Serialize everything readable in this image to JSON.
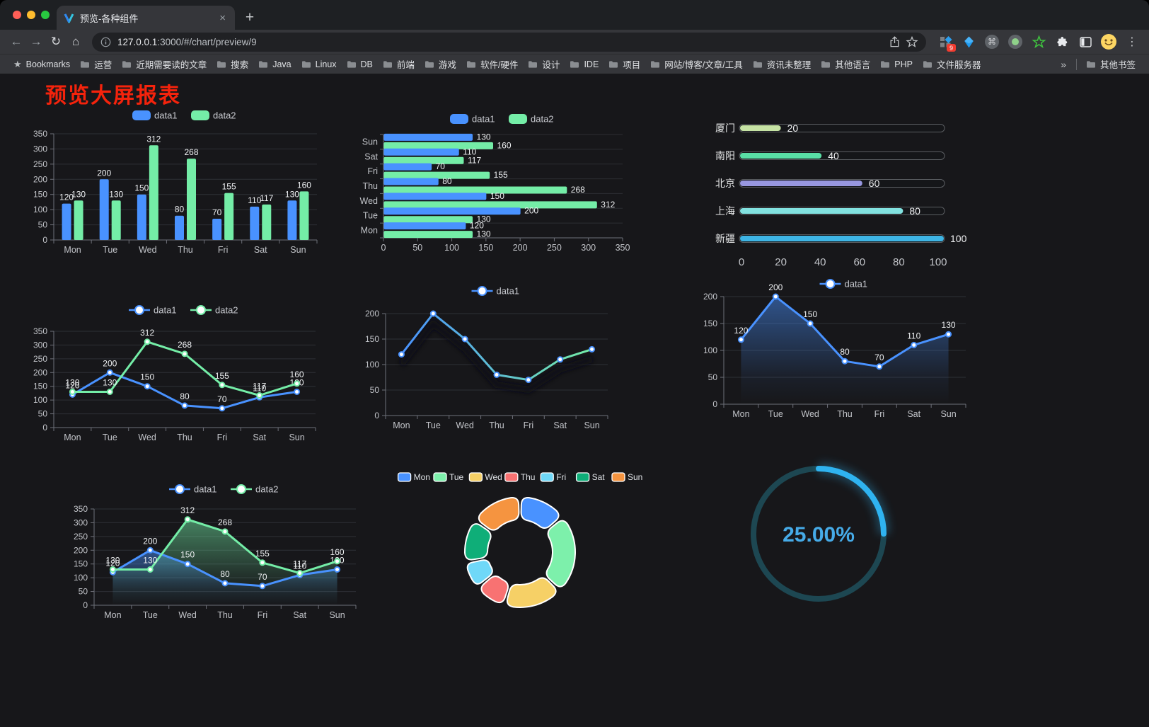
{
  "browser": {
    "tab_title": "预览-各种组件",
    "close_icon": "×",
    "new_tab_icon": "+",
    "back_icon": "←",
    "forward_icon": "→",
    "reload_icon": "↻",
    "home_icon": "⌂",
    "url_host": "127.0.0.1",
    "url_path": ":3000/#/chart/preview/9",
    "bookmarks_star": "★",
    "bookmarks_label": "Bookmarks",
    "bookmarks": [
      "运营",
      "近期需要读的文章",
      "搜索",
      "Java",
      "Linux",
      "DB",
      "前端",
      "游戏",
      "软件/硬件",
      "设计",
      "IDE",
      "项目",
      "网站/博客/文章/工具",
      "资讯未整理",
      "其他语言",
      "PHP",
      "文件服务器"
    ],
    "overflow_icon": "»",
    "other_bookmarks": "其他书签",
    "extension_badge": "9",
    "menu_icon": "⋮",
    "cmd_icon": "⌘"
  },
  "page": {
    "title": "预览大屏报表",
    "title_color": "#f5230c",
    "background": "#17171a"
  },
  "palette": {
    "data1_blue": "#4992ff",
    "data2_green": "#74eda7",
    "axis_label": "#c2c4c9",
    "grid_line": "#2e3036",
    "axis_line": "#6e7079",
    "value_label": "#eef0f2"
  },
  "chart_data": [
    {
      "id": "bar-grouped",
      "type": "bar",
      "categories": [
        "Mon",
        "Tue",
        "Wed",
        "Thu",
        "Fri",
        "Sat",
        "Sun"
      ],
      "series": [
        {
          "name": "data1",
          "color": "#4992ff",
          "values": [
            120,
            200,
            150,
            80,
            70,
            110,
            130
          ]
        },
        {
          "name": "data2",
          "color": "#74eda7",
          "values": [
            130,
            130,
            312,
            268,
            155,
            117,
            160
          ]
        }
      ],
      "ylim": [
        0,
        350
      ],
      "ytick": 50,
      "legend": "top",
      "value_labels": true,
      "grid": true
    },
    {
      "id": "bar-horizontal",
      "type": "bar-horizontal",
      "categories": [
        "Mon",
        "Tue",
        "Wed",
        "Thu",
        "Fri",
        "Sat",
        "Sun"
      ],
      "series": [
        {
          "name": "data1",
          "color": "#4992ff",
          "values": [
            120,
            200,
            150,
            80,
            70,
            110,
            130
          ]
        },
        {
          "name": "data2",
          "color": "#74eda7",
          "values": [
            130,
            130,
            312,
            268,
            155,
            117,
            160
          ]
        }
      ],
      "xlim": [
        0,
        350
      ],
      "xtick": 50,
      "legend": "top",
      "value_labels": true
    },
    {
      "id": "city-progress",
      "type": "progress",
      "max": 100,
      "items": [
        {
          "label": "厦门",
          "value": 20,
          "color": "#c6e3a4"
        },
        {
          "label": "南阳",
          "value": 40,
          "color": "#59dfa6"
        },
        {
          "label": "北京",
          "value": 60,
          "color": "#9897e0"
        },
        {
          "label": "上海",
          "value": 80,
          "color": "#82e2e0"
        },
        {
          "label": "新疆",
          "value": 100,
          "color": "#3eb5e5"
        }
      ],
      "xticks": [
        0,
        20,
        40,
        60,
        80,
        100
      ]
    },
    {
      "id": "line-two",
      "type": "line",
      "categories": [
        "Mon",
        "Tue",
        "Wed",
        "Thu",
        "Fri",
        "Sat",
        "Sun"
      ],
      "series": [
        {
          "name": "data1",
          "color": "#4992ff",
          "values": [
            120,
            200,
            150,
            80,
            70,
            110,
            130
          ]
        },
        {
          "name": "data2",
          "color": "#74eda7",
          "values": [
            130,
            130,
            312,
            268,
            155,
            117,
            160
          ]
        }
      ],
      "ylim": [
        0,
        350
      ],
      "ytick": 50,
      "legend": "top",
      "value_labels": true
    },
    {
      "id": "line-gradient",
      "type": "line-gradient",
      "categories": [
        "Mon",
        "Tue",
        "Wed",
        "Thu",
        "Fri",
        "Sat",
        "Sun"
      ],
      "series": [
        {
          "name": "data1",
          "color": "#4992ff",
          "values": [
            120,
            200,
            150,
            80,
            70,
            110,
            130
          ]
        }
      ],
      "gradient": [
        "#4992ff",
        "#74eda7"
      ],
      "ylim": [
        0,
        200
      ],
      "ytick": 50,
      "legend": "top",
      "value_labels": false
    },
    {
      "id": "area-one",
      "type": "area",
      "categories": [
        "Mon",
        "Tue",
        "Wed",
        "Thu",
        "Fri",
        "Sat",
        "Sun"
      ],
      "series": [
        {
          "name": "data1",
          "color": "#4992ff",
          "values": [
            120,
            200,
            150,
            80,
            70,
            110,
            130
          ]
        }
      ],
      "ylim": [
        0,
        200
      ],
      "ytick": 50,
      "legend": "top",
      "value_labels": true
    },
    {
      "id": "area-two",
      "type": "area",
      "categories": [
        "Mon",
        "Tue",
        "Wed",
        "Thu",
        "Fri",
        "Sat",
        "Sun"
      ],
      "series": [
        {
          "name": "data1",
          "color": "#4992ff",
          "values": [
            120,
            200,
            150,
            80,
            70,
            110,
            130
          ]
        },
        {
          "name": "data2",
          "color": "#74eda7",
          "values": [
            130,
            130,
            312,
            268,
            155,
            117,
            160
          ]
        }
      ],
      "ylim": [
        0,
        350
      ],
      "ytick": 50,
      "legend": "top",
      "value_labels": true
    },
    {
      "id": "donut",
      "type": "pie",
      "categories": [
        "Mon",
        "Tue",
        "Wed",
        "Thu",
        "Fri",
        "Sat",
        "Sun"
      ],
      "values": [
        120,
        200,
        150,
        80,
        70,
        110,
        130
      ],
      "colors": [
        "#4992ff",
        "#7df0ab",
        "#f6d066",
        "#f87272",
        "#6fd8f8",
        "#0fae78",
        "#f59440"
      ],
      "legend": "top"
    },
    {
      "id": "gauge",
      "type": "gauge",
      "value": 25,
      "max": 100,
      "label": "25.00%",
      "color": "#2fb3f0",
      "track": "#1d4752",
      "text_color": "#46abe8"
    }
  ]
}
